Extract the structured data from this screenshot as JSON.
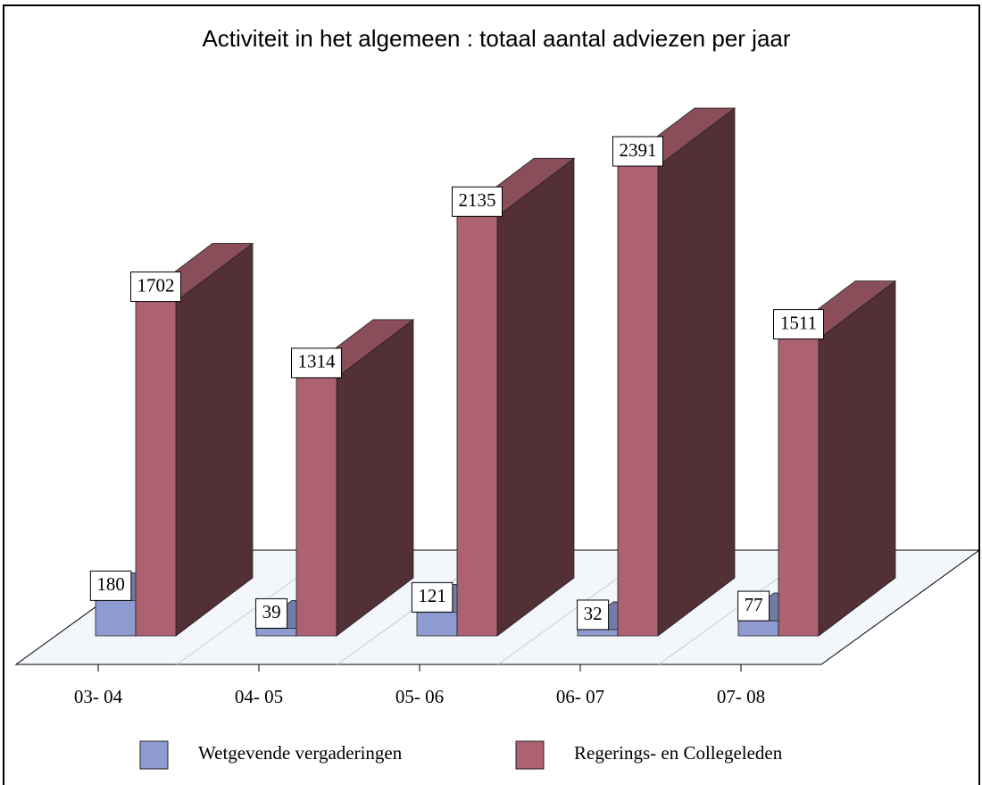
{
  "chart_data": {
    "type": "bar3d",
    "title": "Activiteit in het algemeen : totaal aantal adviezen per jaar",
    "categories": [
      "03- 04",
      "04- 05",
      "05- 06",
      "06- 07",
      "07- 08"
    ],
    "series": [
      {
        "name": "Wetgevende vergaderingen",
        "color": "#8e9bd0",
        "values": [
          180,
          39,
          121,
          32,
          77
        ]
      },
      {
        "name": "Regerings- en Collegeleden",
        "color": "#ac6270",
        "values": [
          1702,
          1314,
          2135,
          2391,
          1511
        ]
      }
    ],
    "legend": "bottom"
  }
}
